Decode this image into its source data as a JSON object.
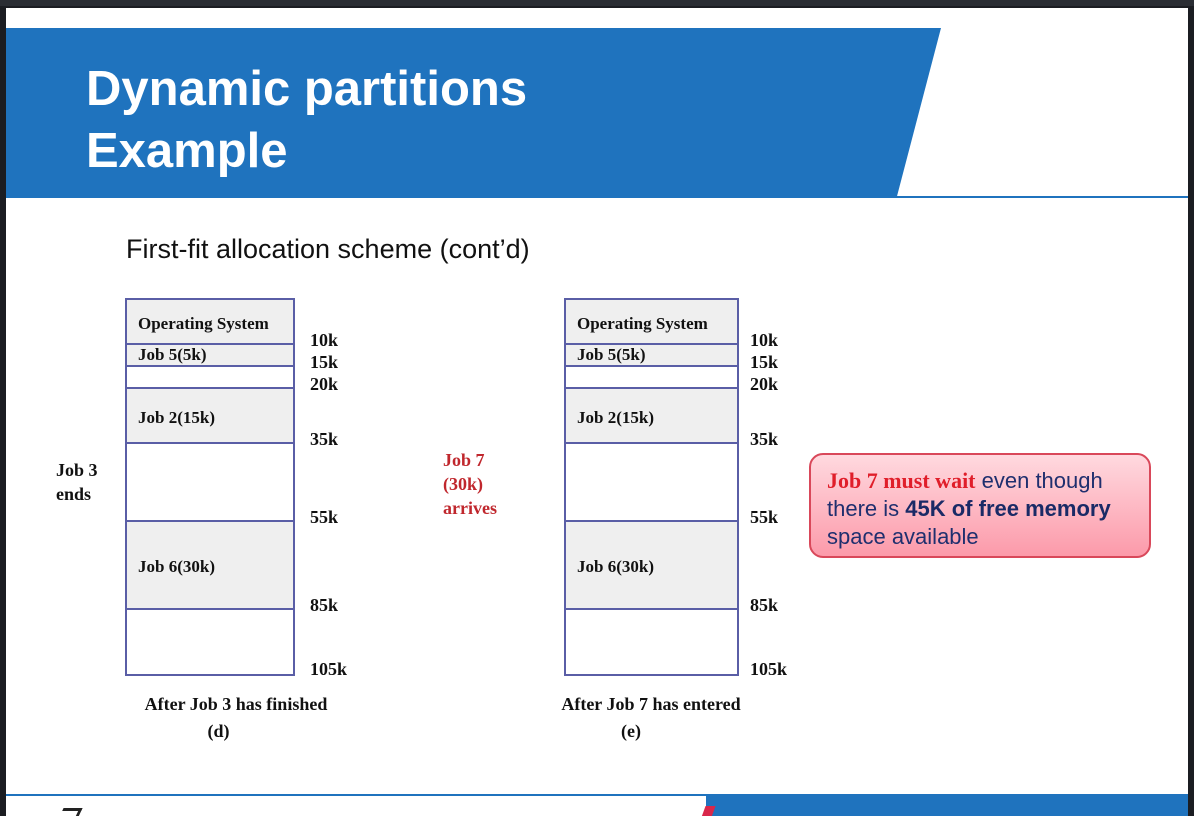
{
  "slide": {
    "title_line1": "Dynamic partitions",
    "title_line2": "Example",
    "subtitle": "First-fit allocation scheme (cont’d)"
  },
  "events": {
    "left": "Job 3 ends",
    "middle": "Job 7 (30k) arrives"
  },
  "diagrams": [
    {
      "caption": "After Job 3 has finished",
      "sublabel": "(d)",
      "regions": [
        {
          "label": "Operating System",
          "state": "used"
        },
        {
          "label": "Job 5(5k)",
          "state": "used"
        },
        {
          "label": "",
          "state": "free"
        },
        {
          "label": "Job 2(15k)",
          "state": "used"
        },
        {
          "label": "",
          "state": "free"
        },
        {
          "label": "Job 6(30k)",
          "state": "used"
        },
        {
          "label": "",
          "state": "free"
        }
      ],
      "addresses": [
        "10k",
        "15k",
        "20k",
        "35k",
        "55k",
        "85k",
        "105k"
      ]
    },
    {
      "caption": "After Job 7 has entered",
      "sublabel": "(e)",
      "regions": [
        {
          "label": "Operating System",
          "state": "used"
        },
        {
          "label": "Job 5(5k)",
          "state": "used"
        },
        {
          "label": "",
          "state": "free"
        },
        {
          "label": "Job 2(15k)",
          "state": "used"
        },
        {
          "label": "",
          "state": "free"
        },
        {
          "label": "Job 6(30k)",
          "state": "used"
        },
        {
          "label": "",
          "state": "free"
        }
      ],
      "addresses": [
        "10k",
        "15k",
        "20k",
        "35k",
        "55k",
        "85k",
        "105k"
      ]
    }
  ],
  "callout": {
    "part1": "Job 7 must wait",
    "part2": " even though there is ",
    "part3": "45K of free memory",
    "part4": " space available"
  },
  "colors": {
    "header": "#1f73be",
    "accent_red": "#e01e2a",
    "box_border": "#5a5ea6"
  }
}
